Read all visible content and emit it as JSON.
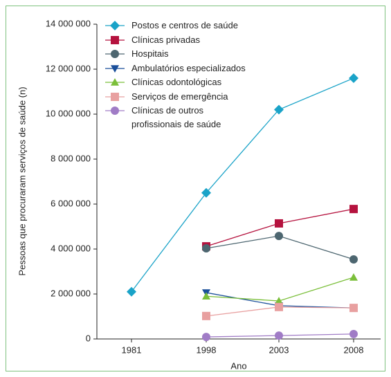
{
  "chart_data": {
    "type": "line",
    "x_label": "Ano",
    "y_label": "Pessoas que procuraram serviços de saúde (n)",
    "categories": [
      "1981",
      "1998",
      "2003",
      "2008"
    ],
    "ylim": [
      0,
      14000000
    ],
    "yticks": [
      {
        "value": 0,
        "label": "0"
      },
      {
        "value": 2000000,
        "label": "2 000 000"
      },
      {
        "value": 4000000,
        "label": "4 000 000"
      },
      {
        "value": 6000000,
        "label": "6 000 000"
      },
      {
        "value": 8000000,
        "label": "8 000 000"
      },
      {
        "value": 10000000,
        "label": "10 000 000"
      },
      {
        "value": 12000000,
        "label": "12 000 000"
      },
      {
        "value": 14000000,
        "label": "14 000 000"
      }
    ],
    "series": [
      {
        "name": "Postos e centros de saúde",
        "color": "#1aa3c8",
        "marker": "diamond",
        "values": [
          2100000,
          6500000,
          10200000,
          11600000
        ]
      },
      {
        "name": "Clínicas privadas",
        "color": "#b5123e",
        "marker": "square",
        "values": [
          null,
          4120000,
          5140000,
          5780000
        ]
      },
      {
        "name": "Hospitais",
        "color": "#4d6670",
        "marker": "circle",
        "values": [
          null,
          4030000,
          4580000,
          3540000
        ]
      },
      {
        "name": "Ambulatórios especializados",
        "color": "#1a4f9a",
        "marker": "triangle-down",
        "values": [
          null,
          2060000,
          1480000,
          1380000
        ]
      },
      {
        "name": "Clínicas odontológicas",
        "color": "#7bbf3a",
        "marker": "triangle-up",
        "values": [
          null,
          1900000,
          1690000,
          2740000
        ]
      },
      {
        "name": "Serviços de emergência",
        "color": "#e8a0a0",
        "marker": "square",
        "values": [
          null,
          1020000,
          1420000,
          1380000
        ]
      },
      {
        "name": "Clínicas de outros\nprofissionais de saúde",
        "color": "#a07cc6",
        "marker": "circle",
        "values": [
          null,
          90000,
          150000,
          220000
        ]
      }
    ]
  }
}
